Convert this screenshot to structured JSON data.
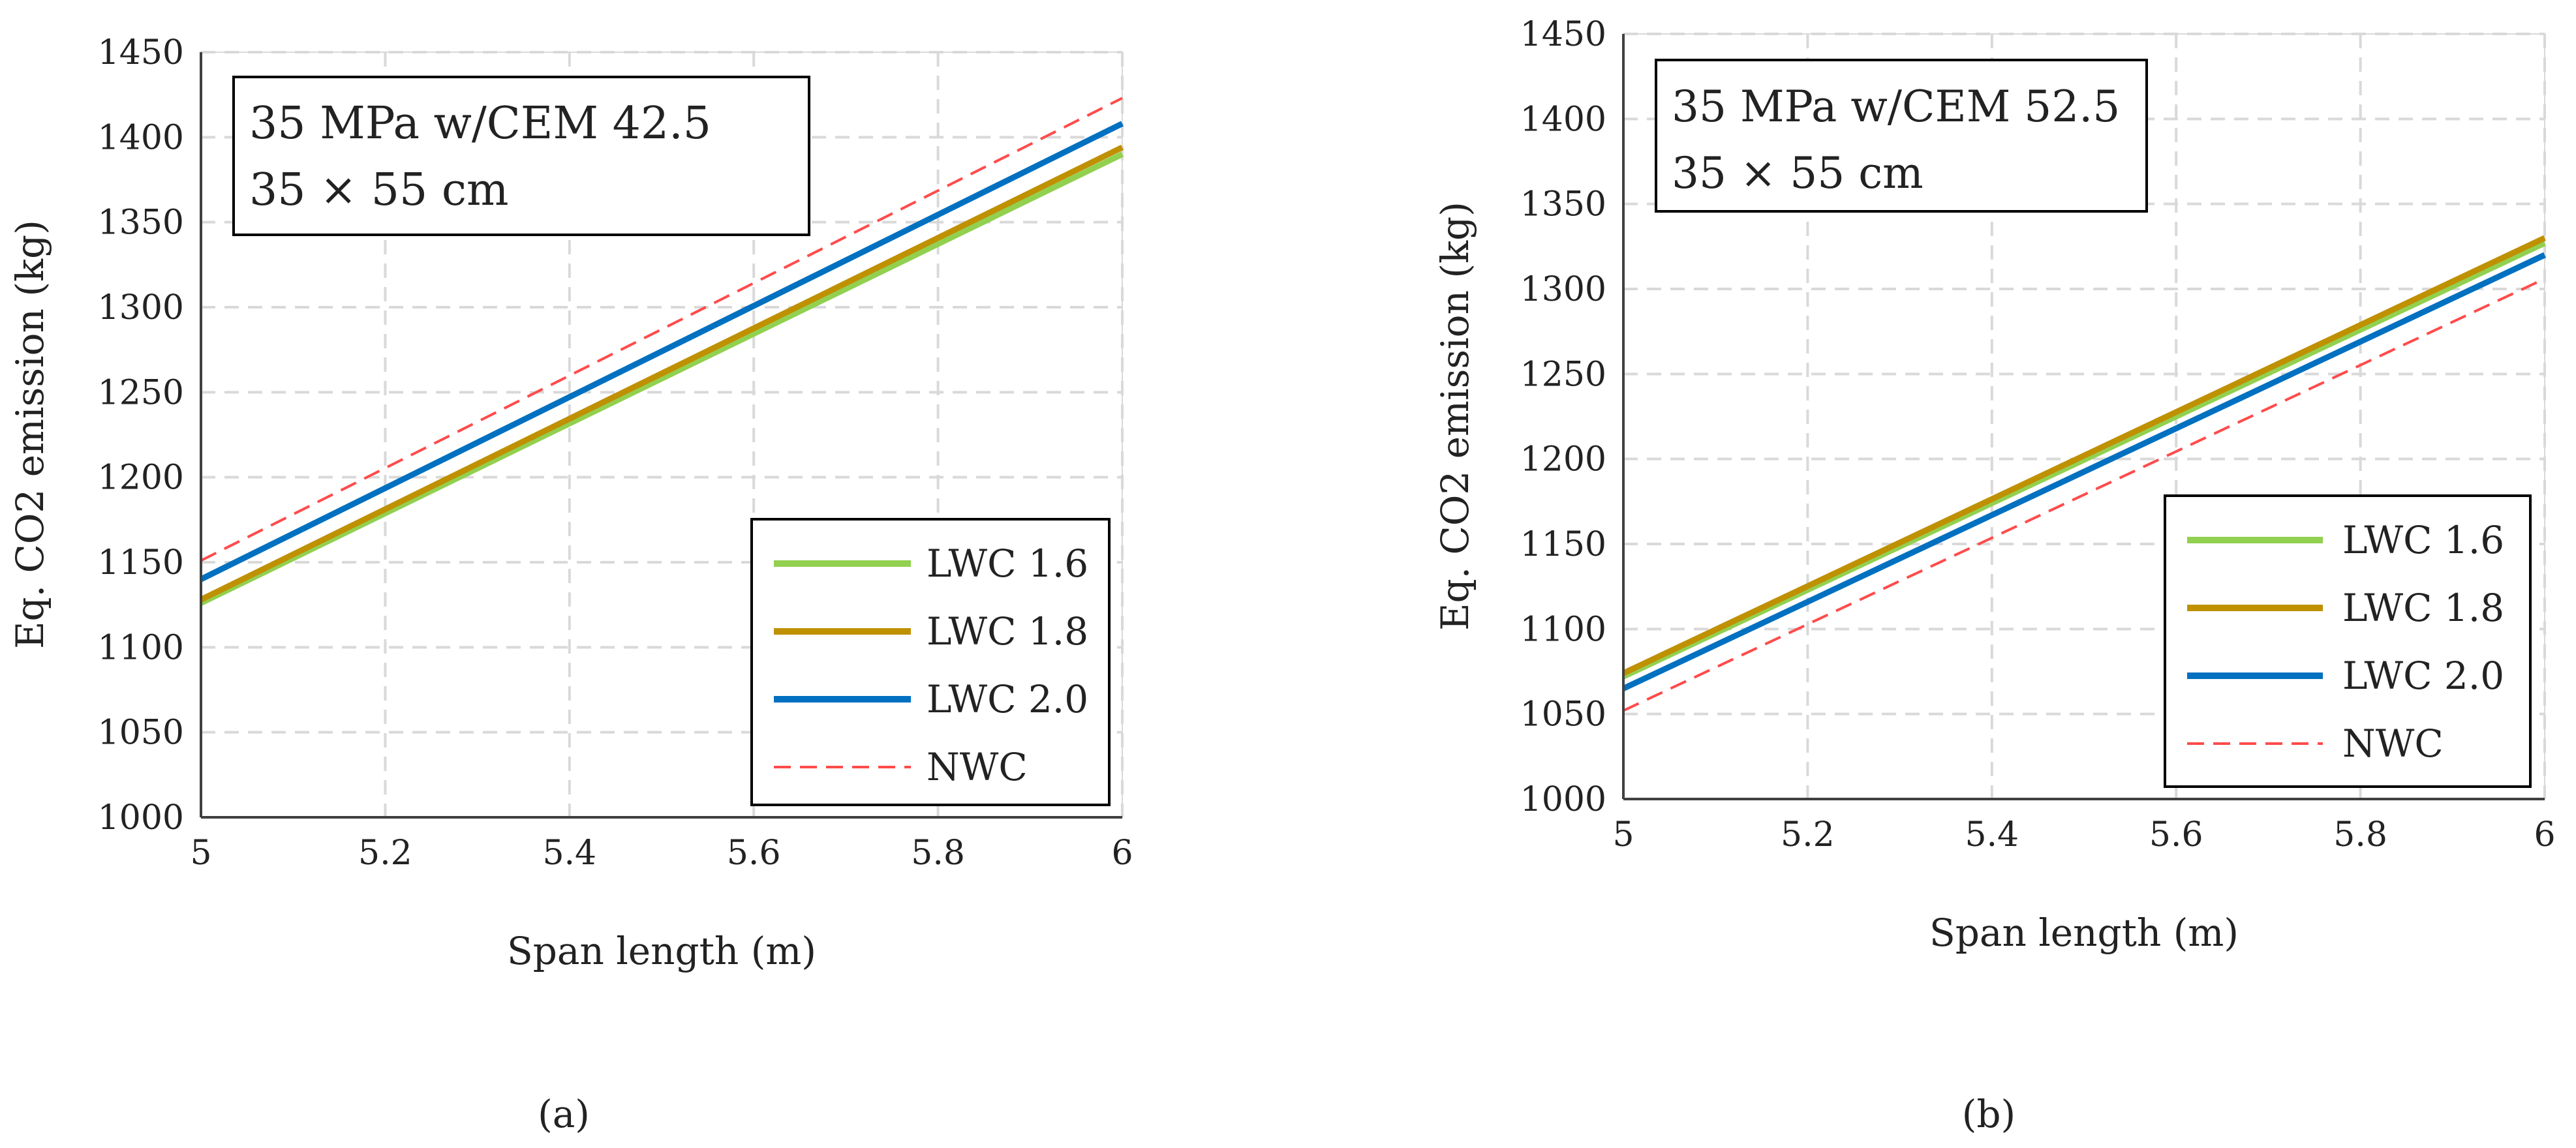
{
  "figure": {
    "panels": [
      {
        "label": "(a)",
        "annotation_line1": "35 MPa w/CEM  42.5",
        "annotation_line2": "35 × 55 cm"
      },
      {
        "label": "(b)",
        "annotation_line1": "35 MPa w/CEM  52.5",
        "annotation_line2": "35 × 55 cm"
      }
    ]
  },
  "chart_data": [
    {
      "type": "line",
      "title": "35 MPa w/CEM 42.5, 35 × 55 cm",
      "xlabel": "Span length (m)",
      "ylabel": "Eq. CO2 emission (kg)",
      "xlim": [
        5,
        6
      ],
      "ylim": [
        1000,
        1450
      ],
      "xticks": [
        5,
        5.2,
        5.4,
        5.6,
        5.8,
        6
      ],
      "xtick_labels": [
        "5",
        "5.2",
        "5.4",
        "5.6",
        "5.8",
        "6"
      ],
      "yticks": [
        1000,
        1050,
        1100,
        1150,
        1200,
        1250,
        1300,
        1350,
        1400,
        1450
      ],
      "grid": true,
      "legend_position": "bottom-right",
      "series": [
        {
          "name": "LWC 1.6",
          "x": [
            5,
            6
          ],
          "y": [
            1126,
            1390
          ],
          "color": "#92d050",
          "dash": "solid"
        },
        {
          "name": "LWC 1.8",
          "x": [
            5,
            6
          ],
          "y": [
            1128,
            1394
          ],
          "color": "#bf9000",
          "dash": "solid"
        },
        {
          "name": "LWC 2.0",
          "x": [
            5,
            6
          ],
          "y": [
            1140,
            1408
          ],
          "color": "#0070c0",
          "dash": "solid"
        },
        {
          "name": "NWC",
          "x": [
            5,
            6
          ],
          "y": [
            1151,
            1423
          ],
          "color": "#ff4b4b",
          "dash": "dashed"
        }
      ]
    },
    {
      "type": "line",
      "title": "35 MPa w/CEM 52.5, 35 × 55 cm",
      "xlabel": "Span length (m)",
      "ylabel": "Eq. CO2 emission (kg)",
      "xlim": [
        5,
        6
      ],
      "ylim": [
        1000,
        1450
      ],
      "xticks": [
        5,
        5.2,
        5.4,
        5.6,
        5.8,
        6
      ],
      "xtick_labels": [
        "5",
        "5.2",
        "5.4",
        "5.6",
        "5.8",
        "6"
      ],
      "yticks": [
        1000,
        1050,
        1100,
        1150,
        1200,
        1250,
        1300,
        1350,
        1400,
        1450
      ],
      "grid": true,
      "legend_position": "bottom-right",
      "series": [
        {
          "name": "LWC 1.6",
          "x": [
            5,
            6
          ],
          "y": [
            1072,
            1327
          ],
          "color": "#92d050",
          "dash": "solid"
        },
        {
          "name": "LWC 1.8",
          "x": [
            5,
            6
          ],
          "y": [
            1074,
            1330
          ],
          "color": "#bf9000",
          "dash": "solid"
        },
        {
          "name": "LWC 2.0",
          "x": [
            5,
            6
          ],
          "y": [
            1065,
            1320
          ],
          "color": "#0070c0",
          "dash": "solid"
        },
        {
          "name": "NWC",
          "x": [
            5,
            6
          ],
          "y": [
            1052,
            1306
          ],
          "color": "#ff4b4b",
          "dash": "dashed"
        }
      ]
    }
  ]
}
